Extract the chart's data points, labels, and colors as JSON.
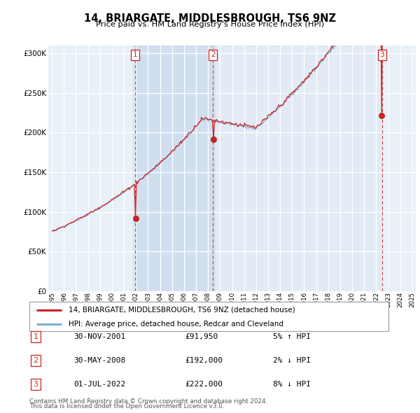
{
  "title": "14, BRIARGATE, MIDDLESBROUGH, TS6 9NZ",
  "subtitle": "Price paid vs. HM Land Registry's House Price Index (HPI)",
  "legend_line1": "14, BRIARGATE, MIDDLESBROUGH, TS6 9NZ (detached house)",
  "legend_line2": "HPI: Average price, detached house, Redcar and Cleveland",
  "transactions": [
    {
      "num": 1,
      "date": "30-NOV-2001",
      "price": 91950,
      "pct": "5%",
      "dir": "↑"
    },
    {
      "num": 2,
      "date": "30-MAY-2008",
      "price": 192000,
      "pct": "2%",
      "dir": "↓"
    },
    {
      "num": 3,
      "date": "01-JUL-2022",
      "price": 222000,
      "pct": "8%",
      "dir": "↓"
    }
  ],
  "t1": 2001.917,
  "t2": 2008.417,
  "t3": 2022.5,
  "footer1": "Contains HM Land Registry data © Crown copyright and database right 2024.",
  "footer2": "This data is licensed under the Open Government Licence v3.0.",
  "hpi_color": "#7ab0d4",
  "price_color": "#cc2222",
  "vline_color": "#cc2222",
  "shade_color": "#ddeeff",
  "background_color": "#e8f0f8",
  "ylim": [
    0,
    310000
  ],
  "yticks": [
    0,
    50000,
    100000,
    150000,
    200000,
    250000,
    300000
  ],
  "xmin": 1994.7,
  "xmax": 2025.3
}
